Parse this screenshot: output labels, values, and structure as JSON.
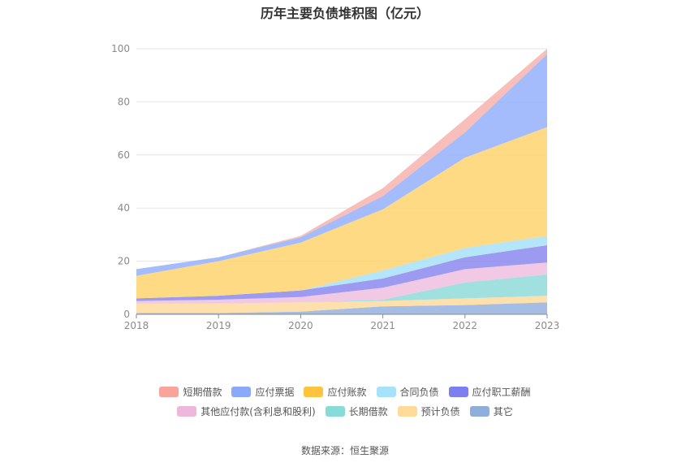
{
  "chart_data": {
    "type": "area",
    "title": "历年主要负债堆积图（亿元）",
    "x": [
      "2018",
      "2019",
      "2020",
      "2021",
      "2022",
      "2023"
    ],
    "ylim": [
      0,
      100
    ],
    "yticks": [
      0,
      20,
      40,
      60,
      80,
      100
    ],
    "grid": true,
    "legend_position": "bottom",
    "series": [
      {
        "name": "其它",
        "color": "#95b0e0",
        "values": [
          0.5,
          0.5,
          1.0,
          3.0,
          3.5,
          4.5
        ]
      },
      {
        "name": "预计负债",
        "color": "#fddb9c",
        "values": [
          3.5,
          3.5,
          3.5,
          2.0,
          2.5,
          2.5
        ]
      },
      {
        "name": "长期借款",
        "color": "#8fdad8",
        "values": [
          0,
          0,
          0,
          0.5,
          6.0,
          8.0
        ]
      },
      {
        "name": "其他应付款(含利息和股利)",
        "color": "#eebfdf",
        "values": [
          1.0,
          1.5,
          2.0,
          4.5,
          5.0,
          4.5
        ]
      },
      {
        "name": "应付职工薪酬",
        "color": "#8c89ef",
        "values": [
          1.0,
          1.5,
          2.5,
          3.5,
          4.5,
          6.5
        ]
      },
      {
        "name": "合同负债",
        "color": "#a8e0f7",
        "values": [
          0,
          0,
          0,
          3.0,
          3.5,
          3.5
        ]
      },
      {
        "name": "应付账款",
        "color": "#ffd36e",
        "values": [
          8.5,
          13.0,
          18.0,
          23.0,
          34.0,
          41.0
        ]
      },
      {
        "name": "应付票据",
        "color": "#94b0fb",
        "values": [
          2.5,
          1.5,
          2.0,
          5.0,
          9.5,
          27.5
        ]
      },
      {
        "name": "短期借款",
        "color": "#f7b3ad",
        "values": [
          0,
          0,
          0.5,
          3.0,
          5.0,
          2.0
        ]
      }
    ]
  },
  "legend": {
    "row1": [
      {
        "label": "短期借款",
        "color": "#f8a49b"
      },
      {
        "label": "应付票据",
        "color": "#8ca8f8"
      },
      {
        "label": "应付账款",
        "color": "#ffc43d"
      },
      {
        "label": "合同负债",
        "color": "#a6e3fa"
      },
      {
        "label": "应付职工薪酬",
        "color": "#7b7ff0"
      }
    ],
    "row2": [
      {
        "label": "其他应付款(含利息和股利)",
        "color": "#edb8dc"
      },
      {
        "label": "长期借款",
        "color": "#87dcd7"
      },
      {
        "label": "预计负债",
        "color": "#ffdb99"
      },
      {
        "label": "其它",
        "color": "#8eaedb"
      }
    ]
  },
  "source": "数据来源：恒生聚源"
}
